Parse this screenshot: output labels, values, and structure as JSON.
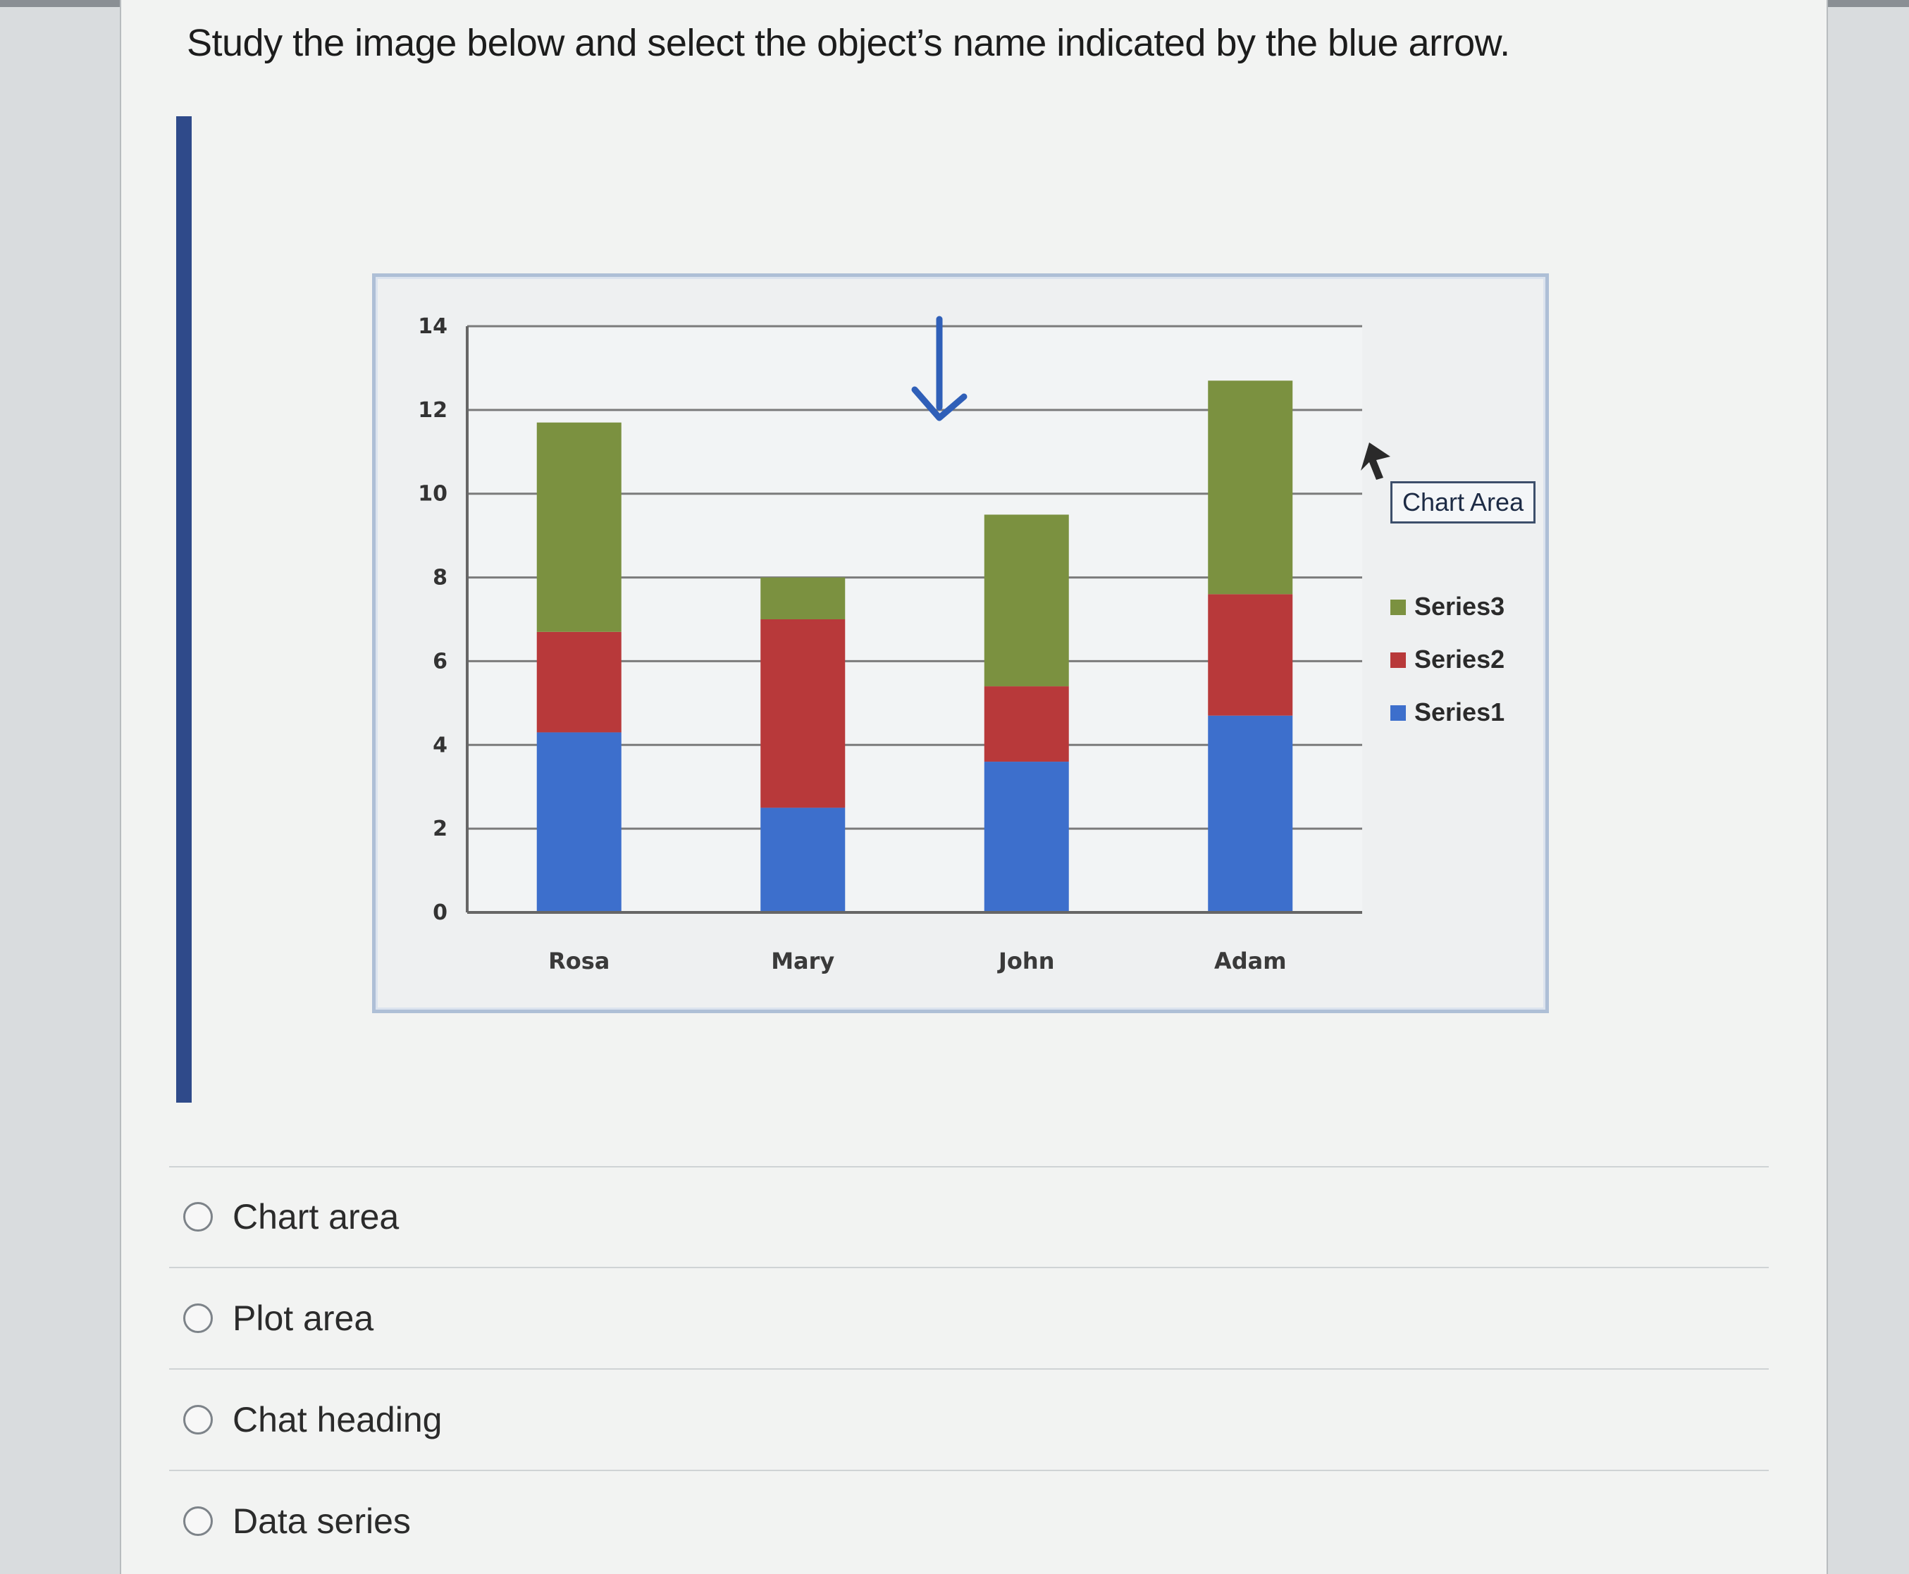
{
  "question": {
    "text": "Study the image below and select the object’s name indicated by the blue arrow."
  },
  "tooltip": {
    "text": "Chart Area"
  },
  "options": [
    {
      "label": "Chart area"
    },
    {
      "label": "Plot area"
    },
    {
      "label": "Chat heading"
    },
    {
      "label": "Data series"
    }
  ],
  "chart_data": {
    "type": "bar",
    "stacked": true,
    "categories": [
      "Rosa",
      "Mary",
      "John",
      "Adam"
    ],
    "series": [
      {
        "name": "Series1",
        "color": "#3d6fcc",
        "values": [
          4.3,
          2.5,
          3.6,
          4.7
        ]
      },
      {
        "name": "Series2",
        "color": "#b8393a",
        "values": [
          2.4,
          4.5,
          1.8,
          2.9
        ]
      },
      {
        "name": "Series3",
        "color": "#7b9140",
        "values": [
          5.0,
          1.0,
          4.1,
          5.1
        ]
      }
    ],
    "ylim": [
      0,
      14
    ],
    "yticks": [
      0,
      2,
      4,
      6,
      8,
      10,
      12,
      14
    ],
    "grid": true,
    "legend": "right",
    "legend_order": [
      "Series3",
      "Series2",
      "Series1"
    ],
    "title": "",
    "xlabel": "",
    "ylabel": ""
  },
  "colors": {
    "arrow": "#2f5fb8",
    "axis": "#666666",
    "grid": "#7b7b7b"
  }
}
